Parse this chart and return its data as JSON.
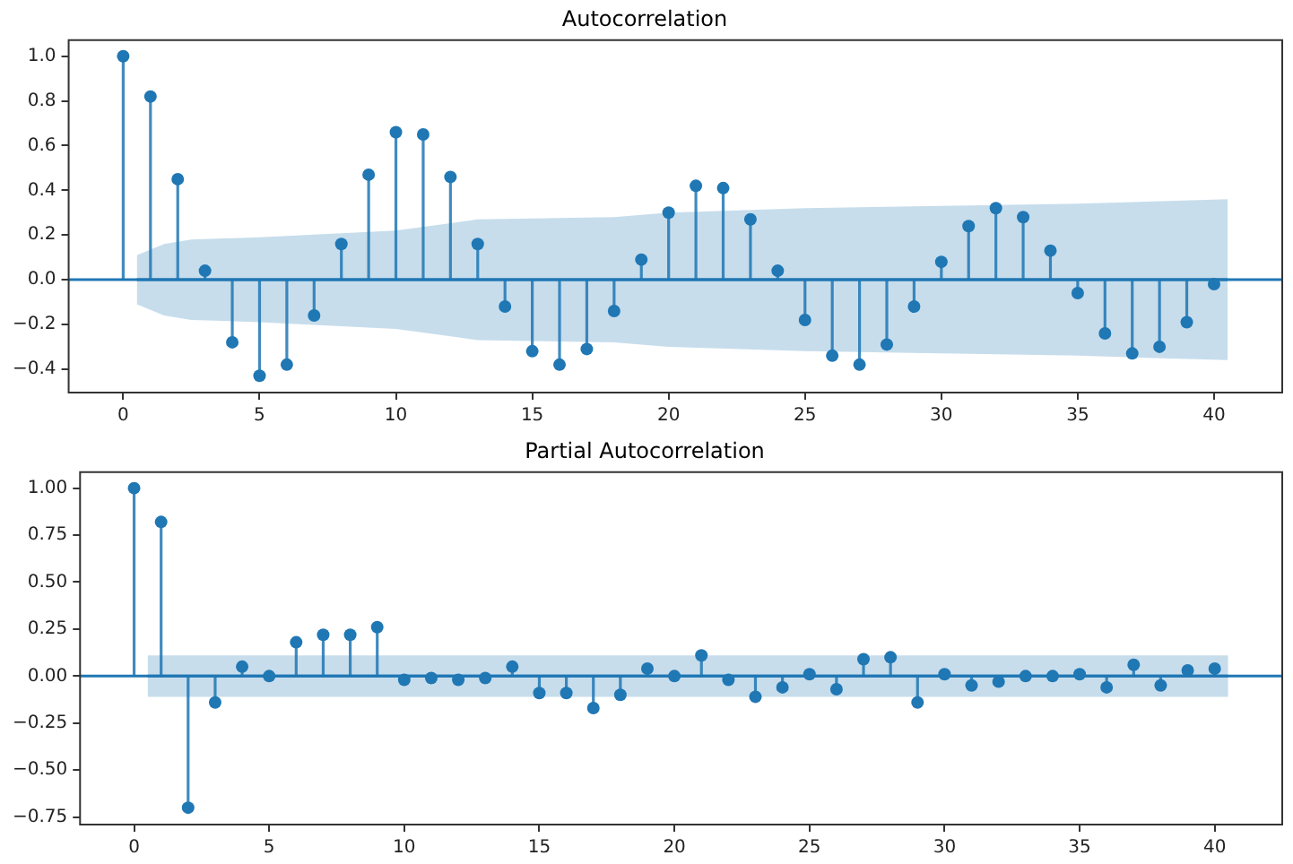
{
  "chart_data": [
    {
      "type": "lollipop",
      "title": "Autocorrelation",
      "grid": false,
      "legend": false,
      "x": [
        0,
        1,
        2,
        3,
        4,
        5,
        6,
        7,
        8,
        9,
        10,
        11,
        12,
        13,
        14,
        15,
        16,
        17,
        18,
        19,
        20,
        21,
        22,
        23,
        24,
        25,
        26,
        27,
        28,
        29,
        30,
        31,
        32,
        33,
        34,
        35,
        36,
        37,
        38,
        39,
        40
      ],
      "xlim": [
        -2,
        42.5
      ],
      "xticks": [
        0,
        5,
        10,
        15,
        20,
        25,
        30,
        35,
        40
      ],
      "ylim": [
        -0.505,
        1.072
      ],
      "yticks": [
        {
          "value": -0.4,
          "label": "−0.4"
        },
        {
          "value": -0.2,
          "label": "−0.2"
        },
        {
          "value": 0,
          "label": "0.0"
        },
        {
          "value": 0.2,
          "label": "0.2"
        },
        {
          "value": 0.4,
          "label": "0.4"
        },
        {
          "value": 0.6,
          "label": "0.6"
        },
        {
          "value": 0.8,
          "label": "0.8"
        },
        {
          "value": 1,
          "label": "1.0"
        }
      ],
      "ref_lines": [
        {
          "axis": "y",
          "value": 0,
          "color": "#1f77b4"
        }
      ],
      "series": [
        {
          "marker": "circle",
          "color": "#1f77b4",
          "values": [
            1.0,
            0.82,
            0.45,
            0.04,
            -0.28,
            -0.43,
            -0.38,
            -0.16,
            0.16,
            0.47,
            0.66,
            0.65,
            0.46,
            0.16,
            -0.12,
            -0.32,
            -0.38,
            -0.31,
            -0.14,
            0.09,
            0.3,
            0.42,
            0.41,
            0.27,
            0.04,
            -0.18,
            -0.34,
            -0.38,
            -0.29,
            -0.12,
            0.08,
            0.24,
            0.32,
            0.28,
            0.13,
            -0.06,
            -0.24,
            -0.33,
            -0.3,
            -0.19,
            -0.02
          ]
        },
        {
          "type": "line",
          "marker": "none",
          "color": "#1f77b4",
          "x": [
            0.5,
            1.5,
            2.5,
            5,
            10,
            13,
            18,
            20,
            25,
            30,
            35,
            40.5
          ],
          "values": [
            0,
            0,
            0,
            0,
            0,
            0,
            0,
            0,
            0,
            0,
            0,
            0
          ],
          "lower": [
            -0.11,
            -0.16,
            -0.18,
            -0.19,
            -0.22,
            -0.27,
            -0.28,
            -0.3,
            -0.32,
            -0.33,
            -0.34,
            -0.36
          ],
          "upper": [
            0.11,
            0.16,
            0.18,
            0.19,
            0.22,
            0.27,
            0.28,
            0.3,
            0.32,
            0.33,
            0.34,
            0.36
          ]
        }
      ]
    },
    {
      "type": "lollipop",
      "title": "Partial Autocorrelation",
      "grid": false,
      "legend": false,
      "x": [
        0,
        1,
        2,
        3,
        4,
        5,
        6,
        7,
        8,
        9,
        10,
        11,
        12,
        13,
        14,
        15,
        16,
        17,
        18,
        19,
        20,
        21,
        22,
        23,
        24,
        25,
        26,
        27,
        28,
        29,
        30,
        31,
        32,
        33,
        34,
        35,
        36,
        37,
        38,
        39,
        40
      ],
      "xlim": [
        -2,
        42.5
      ],
      "xticks": [
        0,
        5,
        10,
        15,
        20,
        25,
        30,
        35,
        40
      ],
      "ylim": [
        -0.79,
        1.085
      ],
      "yticks": [
        {
          "value": -0.75,
          "label": "−0.75"
        },
        {
          "value": -0.5,
          "label": "−0.50"
        },
        {
          "value": -0.25,
          "label": "−0.25"
        },
        {
          "value": 0,
          "label": "0.00"
        },
        {
          "value": 0.25,
          "label": "0.25"
        },
        {
          "value": 0.5,
          "label": "0.50"
        },
        {
          "value": 0.75,
          "label": "0.75"
        },
        {
          "value": 1,
          "label": "1.00"
        }
      ],
      "ref_lines": [
        {
          "axis": "y",
          "value": 0,
          "color": "#1f77b4"
        }
      ],
      "series": [
        {
          "marker": "circle",
          "color": "#1f77b4",
          "values": [
            1.0,
            0.82,
            -0.7,
            -0.14,
            0.05,
            0.0,
            0.18,
            0.22,
            0.22,
            0.26,
            -0.02,
            -0.01,
            -0.02,
            -0.01,
            0.05,
            -0.09,
            -0.09,
            -0.17,
            -0.1,
            0.04,
            0.0,
            0.11,
            -0.02,
            -0.11,
            -0.06,
            0.01,
            -0.07,
            0.09,
            0.1,
            -0.14,
            0.01,
            -0.05,
            -0.03,
            0.0,
            0.0,
            0.01,
            -0.06,
            0.06,
            -0.05,
            0.03,
            0.04
          ]
        },
        {
          "type": "line",
          "marker": "none",
          "color": "#1f77b4",
          "x": [
            0.5,
            40.5
          ],
          "values": [
            0,
            0
          ],
          "lower": [
            -0.11,
            -0.11
          ],
          "upper": [
            0.11,
            0.11
          ]
        }
      ]
    }
  ]
}
